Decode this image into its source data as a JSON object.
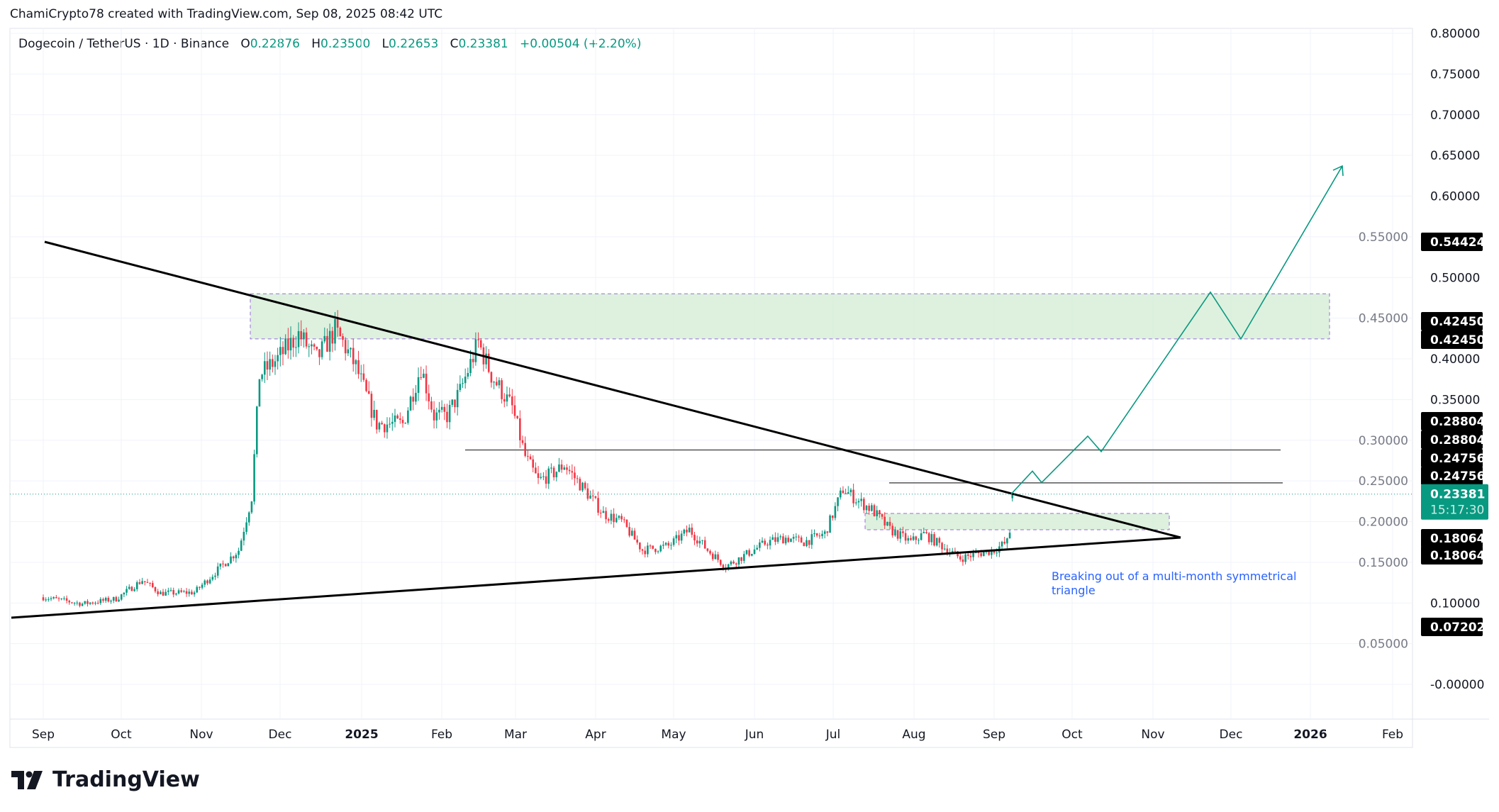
{
  "credit": "ChamiCrypto78 created with TradingView.com, Sep 08, 2025 08:42 UTC",
  "legend": {
    "symbol": "Dogecoin / TetherUS · 1D · Binance",
    "o_label": "O",
    "o": "0.22876",
    "h_label": "H",
    "h": "0.23500",
    "l_label": "L",
    "l": "0.22653",
    "c_label": "C",
    "c": "0.23381",
    "change": "+0.00504 (+2.20%)"
  },
  "brand": "TradingView",
  "colors": {
    "up": "#089981",
    "down": "#f23645",
    "zone": "#d7eed8",
    "zone_border": "#9c6ade",
    "annotation": "#2962ff",
    "grid": "#f0f3fa"
  },
  "chart_data": {
    "type": "candlestick",
    "title": "Dogecoin / TetherUS · 1D · Binance",
    "ylim": [
      0,
      0.8
    ],
    "y_ticks": [
      "0.80000",
      "0.75000",
      "0.70000",
      "0.65000",
      "0.60000",
      "0.55000",
      "0.50000",
      "0.45000",
      "0.40000",
      "0.35000",
      "0.30000",
      "0.25000",
      "0.20000",
      "0.15000",
      "0.10000",
      "0.05000",
      "-0.00000"
    ],
    "x_ticks": [
      "Sep",
      "Oct",
      "Nov",
      "Dec",
      "2025",
      "Feb",
      "Mar",
      "Apr",
      "May",
      "Jun",
      "Jul",
      "Aug",
      "Sep",
      "Oct",
      "Nov",
      "Dec",
      "2026",
      "Feb"
    ],
    "x_start": "2024-09-01",
    "price_keypoints_day_price": [
      [
        0,
        0.107
      ],
      [
        15,
        0.099
      ],
      [
        28,
        0.105
      ],
      [
        38,
        0.128
      ],
      [
        45,
        0.112
      ],
      [
        58,
        0.113
      ],
      [
        70,
        0.15
      ],
      [
        75,
        0.165
      ],
      [
        80,
        0.23
      ],
      [
        83,
        0.38
      ],
      [
        90,
        0.4
      ],
      [
        98,
        0.43
      ],
      [
        105,
        0.4
      ],
      [
        112,
        0.435
      ],
      [
        115,
        0.42
      ],
      [
        120,
        0.39
      ],
      [
        128,
        0.32
      ],
      [
        138,
        0.32
      ],
      [
        145,
        0.39
      ],
      [
        150,
        0.33
      ],
      [
        155,
        0.33
      ],
      [
        160,
        0.36
      ],
      [
        167,
        0.42
      ],
      [
        172,
        0.38
      ],
      [
        180,
        0.34
      ],
      [
        185,
        0.28
      ],
      [
        190,
        0.25
      ],
      [
        196,
        0.26
      ],
      [
        200,
        0.27
      ],
      [
        205,
        0.25
      ],
      [
        215,
        0.21
      ],
      [
        222,
        0.2
      ],
      [
        230,
        0.165
      ],
      [
        240,
        0.17
      ],
      [
        248,
        0.19
      ],
      [
        255,
        0.165
      ],
      [
        262,
        0.145
      ],
      [
        270,
        0.16
      ],
      [
        278,
        0.175
      ],
      [
        285,
        0.18
      ],
      [
        292,
        0.175
      ],
      [
        300,
        0.185
      ],
      [
        307,
        0.24
      ],
      [
        313,
        0.225
      ],
      [
        318,
        0.215
      ],
      [
        325,
        0.19
      ],
      [
        333,
        0.175
      ],
      [
        338,
        0.185
      ],
      [
        345,
        0.17
      ],
      [
        352,
        0.155
      ],
      [
        358,
        0.16
      ],
      [
        365,
        0.165
      ],
      [
        370,
        0.175
      ],
      [
        372,
        0.2
      ],
      [
        378,
        0.24
      ],
      [
        385,
        0.27
      ],
      [
        393,
        0.235
      ],
      [
        400,
        0.21
      ],
      [
        405,
        0.2
      ],
      [
        411,
        0.23
      ],
      [
        418,
        0.23
      ],
      [
        425,
        0.222
      ],
      [
        432,
        0.215
      ],
      [
        436,
        0.22
      ],
      [
        438,
        0.2338
      ]
    ],
    "last_price": "0.23381",
    "countdown": "15:17:30",
    "price_labels": [
      "0.54424",
      "0.42450",
      "0.42450",
      "0.28804",
      "0.28804",
      "0.24756",
      "0.24756",
      "0.18064",
      "0.18064",
      "0.07202"
    ],
    "levels": {
      "resistance_zone": [
        0.4245,
        0.48
      ],
      "retest_zone": [
        0.19,
        0.21
      ],
      "line_1": 0.28804,
      "line_2": 0.24756
    },
    "trendlines": {
      "descending": "lower highs from Sep 2024 to apex near Nov 2025",
      "ascending": "higher lows from Sep 2024 to apex near Nov 2025"
    },
    "projection_prices": [
      0.2338,
      0.262,
      0.248,
      0.305,
      0.286,
      0.482,
      0.4245,
      0.637
    ],
    "annotation": "Breaking out of a multi-month symmetrical triangle"
  }
}
